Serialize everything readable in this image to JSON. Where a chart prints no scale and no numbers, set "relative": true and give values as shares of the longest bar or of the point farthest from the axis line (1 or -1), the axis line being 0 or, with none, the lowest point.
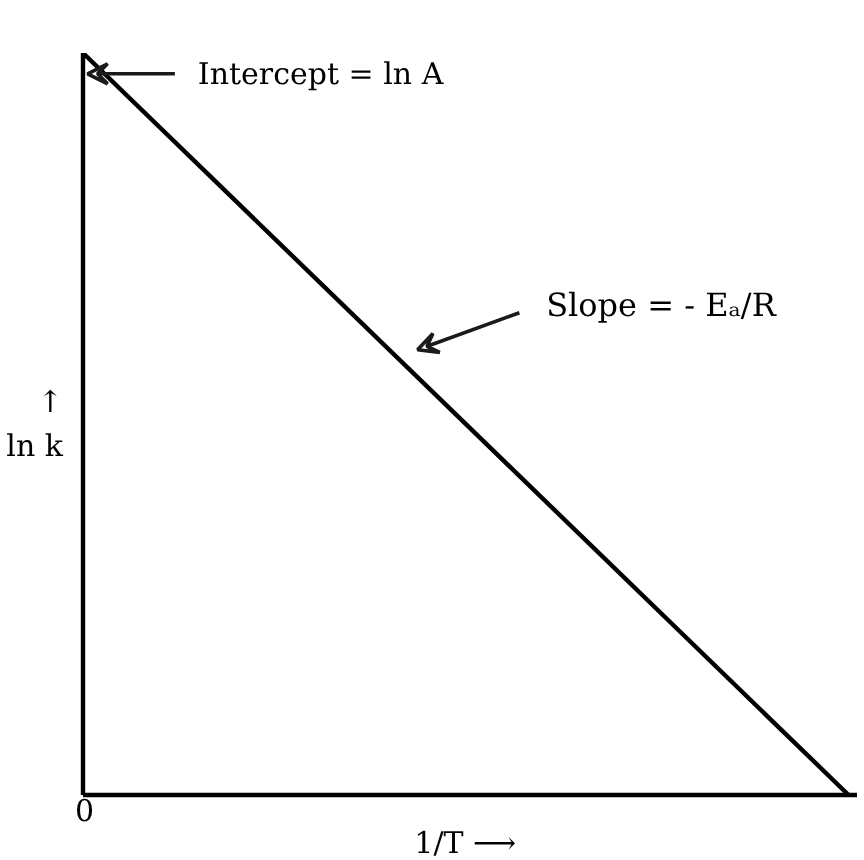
{
  "chart_data": {
    "type": "line",
    "relative": true,
    "categories": [
      null,
      null
    ],
    "values": [
      1,
      0
    ],
    "color": "#000000",
    "xlabel": "1/T  ⟶",
    "ylabel": "↑\nln k",
    "annotations": [
      "Intercept = ln A",
      "Slope = - Eₐ/R",
      "0"
    ]
  }
}
